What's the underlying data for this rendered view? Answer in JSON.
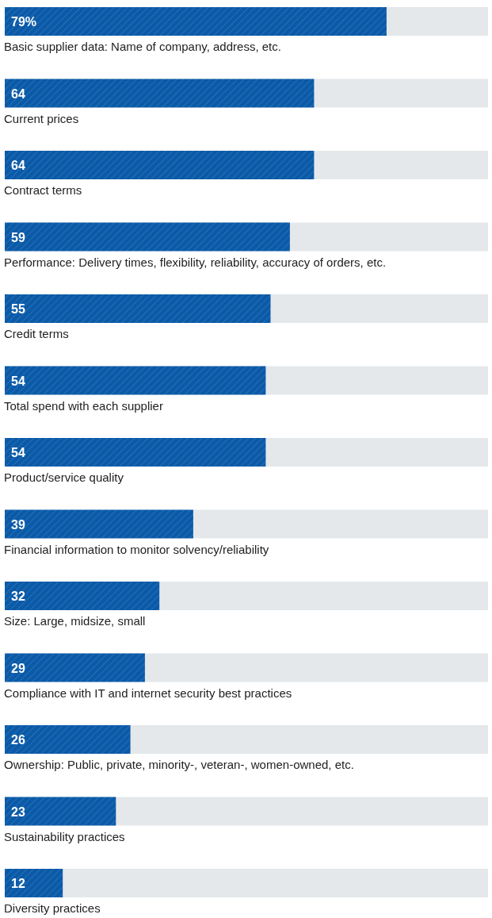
{
  "chart_data": {
    "type": "bar",
    "orientation": "horizontal",
    "categories": [
      "Basic supplier data: Name of company, address, etc.",
      "Current prices",
      "Contract terms",
      "Performance: Delivery times, flexibility, reliability, accuracy of orders, etc.",
      "Credit terms",
      "Total spend with each supplier",
      "Product/service quality",
      "Financial information to monitor solvency/reliability",
      "Size: Large, midsize, small",
      "Compliance with IT and internet security best practices",
      "Ownership: Public, private, minority-, veteran-, women-owned, etc.",
      "Sustainability practices",
      "Diversity practices"
    ],
    "values": [
      79,
      64,
      64,
      59,
      55,
      54,
      54,
      39,
      32,
      29,
      26,
      23,
      12
    ],
    "value_labels": [
      "79%",
      "64",
      "64",
      "59",
      "55",
      "54",
      "54",
      "39",
      "32",
      "29",
      "26",
      "23",
      "12"
    ],
    "color": "#0a5aa8",
    "xlim": [
      0,
      100
    ]
  }
}
